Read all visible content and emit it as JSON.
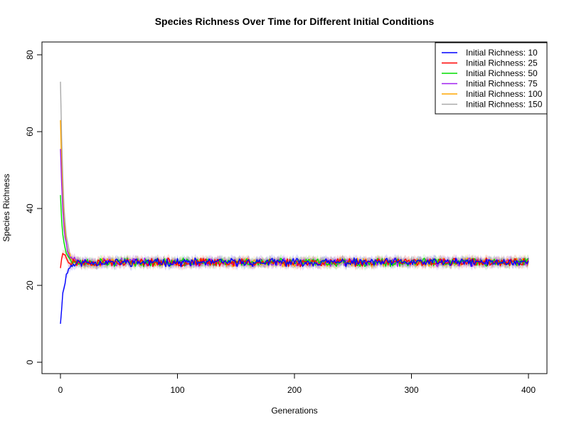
{
  "chart_data": {
    "type": "line",
    "title": "Species Richness Over Time for Different Initial Conditions",
    "xlabel": "Generations",
    "ylabel": "Species Richness",
    "xlim": [
      0,
      400
    ],
    "ylim": [
      0,
      80
    ],
    "x_ticks": [
      0,
      100,
      200,
      300,
      400
    ],
    "y_ticks": [
      0,
      20,
      40,
      60,
      80
    ],
    "x_tick_labels": [
      "0",
      "100",
      "200",
      "300",
      "400"
    ],
    "y_tick_labels": [
      "0",
      "20",
      "40",
      "60",
      "80"
    ],
    "grid": false,
    "legend_position": "top-right",
    "shaded_band": true,
    "series": [
      {
        "name": "Initial Richness: 10",
        "color": "#0000FF",
        "initial": 10,
        "equilibrium": 26,
        "seed": 11
      },
      {
        "name": "Initial Richness: 25",
        "color": "#FF0000",
        "initial": 24.5,
        "equilibrium": 26,
        "seed": 23,
        "early_peak": 28.8
      },
      {
        "name": "Initial Richness: 50",
        "color": "#00DD00",
        "initial": 43.5,
        "equilibrium": 26,
        "seed": 37
      },
      {
        "name": "Initial Richness: 75",
        "color": "#A020F0",
        "initial": 55.5,
        "equilibrium": 26,
        "seed": 51
      },
      {
        "name": "Initial Richness: 100",
        "color": "#FFA500",
        "initial": 63,
        "equilibrium": 26,
        "seed": 67
      },
      {
        "name": "Initial Richness: 150",
        "color": "#A9A9A9",
        "initial": 73,
        "equilibrium": 26,
        "seed": 83
      }
    ]
  }
}
